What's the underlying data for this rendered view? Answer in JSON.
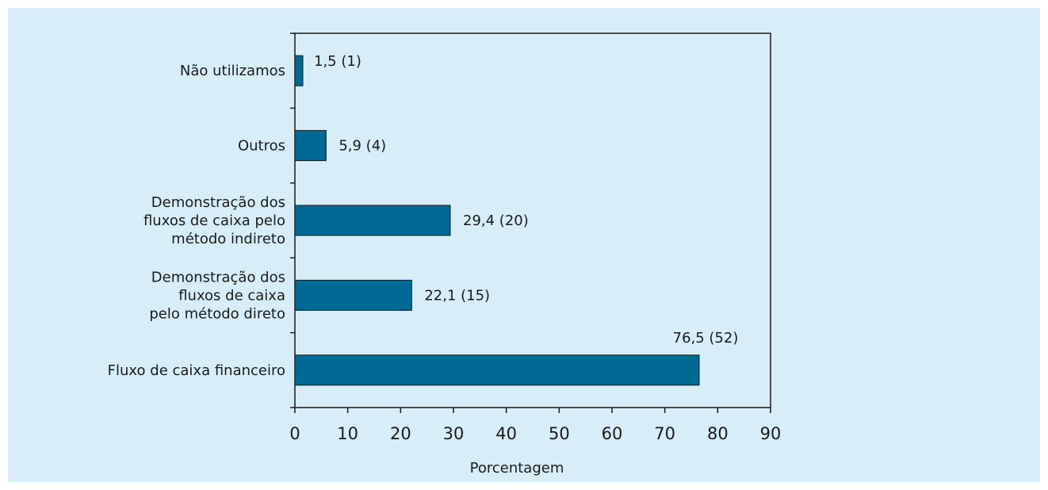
{
  "chart_data": {
    "type": "bar",
    "orientation": "horizontal",
    "categories": [
      [
        "Não utilizamos"
      ],
      [
        "Outros"
      ],
      [
        "Demonstração dos",
        "fluxos de caixa pelo",
        "método indireto"
      ],
      [
        "Demonstração dos",
        "fluxos de caixa",
        "pelo método direto"
      ],
      [
        "Fluxo de caixa financeiro"
      ]
    ],
    "values": [
      1.5,
      5.9,
      29.4,
      22.1,
      76.5
    ],
    "data_labels": [
      "1,5 (1)",
      "5,9 (4)",
      "29,4 (20)",
      "22,1 (15)",
      "76,5 (52)"
    ],
    "xticks": [
      "0",
      "10",
      "20",
      "30",
      "40",
      "50",
      "60",
      "70",
      "80",
      "90"
    ],
    "xlim": [
      0,
      90
    ],
    "xlabel": "Porcentagem",
    "ylabel": "",
    "title": "",
    "grid": false,
    "bar_color": "#006a96",
    "bar_edge_color": "#1a1a1a",
    "background_color": "#d7eef8"
  }
}
